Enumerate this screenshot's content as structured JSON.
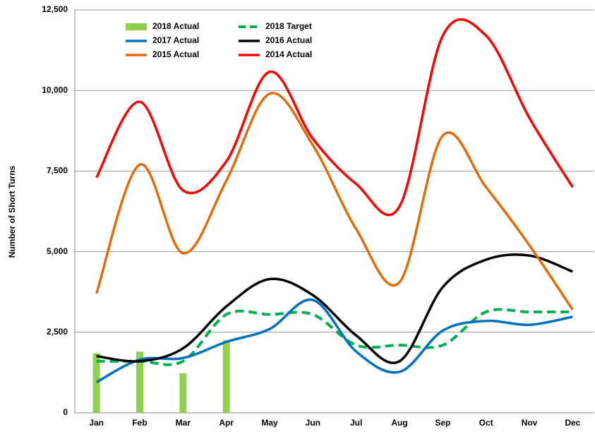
{
  "chart_data": {
    "type": "line",
    "y_label": "Number of Short Turns",
    "categories": [
      "Jan",
      "Feb",
      "Mar",
      "Apr",
      "May",
      "Jun",
      "Jul",
      "Aug",
      "Sep",
      "Oct",
      "Nov",
      "Dec"
    ],
    "series": [
      {
        "name": "2018 Actual",
        "type": "bar",
        "color": "#92d050",
        "values": [
          1850,
          1900,
          1230,
          2250,
          null,
          null,
          null,
          null,
          null,
          null,
          null,
          null
        ]
      },
      {
        "name": "2018 Target",
        "color": "#00b050",
        "dashed": true,
        "values": [
          1600,
          1600,
          1600,
          3050,
          3050,
          3050,
          2100,
          2100,
          2100,
          3130,
          3130,
          3130
        ]
      },
      {
        "name": "2017 Actual",
        "color": "#0070c0",
        "values": [
          950,
          1650,
          1700,
          2200,
          2600,
          3500,
          1900,
          1270,
          2550,
          2850,
          2730,
          2980
        ]
      },
      {
        "name": "2016 Actual",
        "color": "#000000",
        "values": [
          1760,
          1600,
          2000,
          3300,
          4150,
          3650,
          2400,
          1600,
          3900,
          4750,
          4880,
          4380
        ]
      },
      {
        "name": "2015 Actual",
        "color": "#e36c09",
        "values": [
          3700,
          7700,
          4950,
          7200,
          9900,
          8300,
          5700,
          4050,
          8600,
          7000,
          5200,
          3200
        ]
      },
      {
        "name": "2014 Actual",
        "color": "#ff0000",
        "values": [
          7300,
          9650,
          6900,
          7800,
          10580,
          8500,
          7100,
          6400,
          11700,
          11700,
          9150,
          7000
        ]
      }
    ],
    "ylim": [
      0,
      12500
    ],
    "yticks": [
      0,
      {
        "value": 2500,
        "label": "2,500"
      },
      {
        "value": 5000,
        "label": "5,000"
      },
      {
        "value": 7500,
        "label": "7,500"
      },
      {
        "value": 10000,
        "label": "10,000"
      },
      {
        "value": 12500,
        "label": "12,500"
      }
    ],
    "grid": true,
    "legend": "upper left"
  }
}
